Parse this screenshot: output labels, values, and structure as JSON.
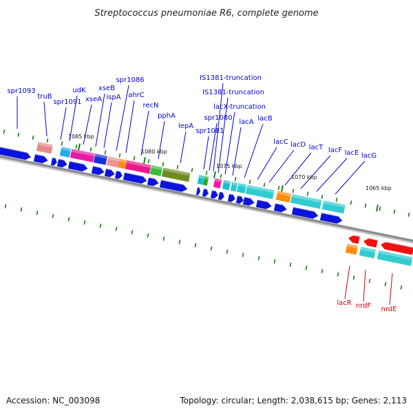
{
  "title": "Streptococcus pneumoniae R6, complete genome",
  "footer": {
    "accession": "Accession: NC_003098",
    "summary": "Topology: circular; Length: 2,038,615 bp; Genes: 2,113"
  },
  "colors": {
    "forward_label": "#0000cc",
    "reverse_label": "#cc0000",
    "tick": "#1a7a1a",
    "backbone": "#8a8a8a"
  },
  "kbp_labels": [
    "1085 kbp",
    "1080 kbp",
    "1075 kbp",
    "1070 kbp",
    "1065 kbp"
  ],
  "gene_labels": {
    "forward": [
      "spr1093",
      "truB",
      "spr1091",
      "udK",
      "xseA",
      "xseB",
      "ispA",
      "spr1086",
      "ahrC",
      "recN",
      "pphA",
      "lepA",
      "spr1081",
      "spr1080",
      "IS1381-truncation",
      "IS1381-truncation",
      "lacX-truncation",
      "lacA",
      "lacB",
      "lacC",
      "lacD",
      "lacT",
      "lacF",
      "lacE",
      "lacG"
    ],
    "reverse": [
      "lacR",
      "nrdF",
      "nrdE"
    ]
  }
}
